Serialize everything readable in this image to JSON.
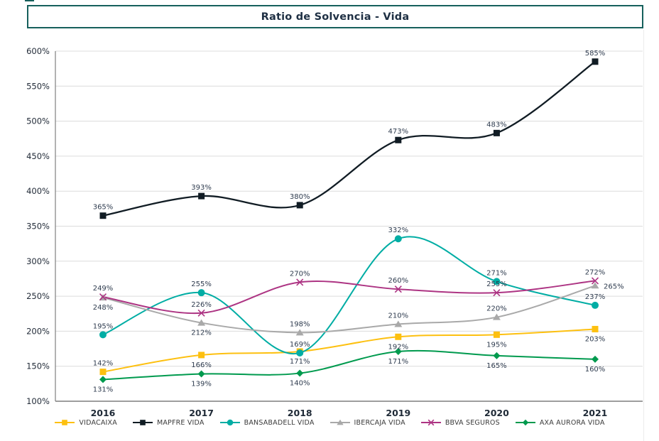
{
  "page": {
    "title": "Ratio de Solvencia - Vida"
  },
  "chart_data": {
    "type": "line",
    "title": "Ratio de Solvencia - Vida",
    "categories": [
      "2016",
      "2017",
      "2018",
      "2019",
      "2020",
      "2021"
    ],
    "y_axis": {
      "min": 100,
      "max": 600,
      "step": 50,
      "suffix": "%"
    },
    "ylim": [
      100,
      600
    ],
    "grid": true,
    "legend_position": "bottom",
    "label_suffix": "%",
    "series": [
      {
        "name": "VIDACAIXA",
        "color": "#FDC010",
        "marker": "square",
        "values": [
          142,
          166,
          171,
          192,
          195,
          203
        ],
        "labels": [
          "142%",
          "166%",
          "171%",
          "192%",
          "195%",
          "203%"
        ],
        "label_pos": [
          "above",
          "below",
          "below",
          "below",
          "below",
          "below"
        ]
      },
      {
        "name": "MAPFRE VIDA",
        "color": "#111C24",
        "marker": "square",
        "values": [
          365,
          393,
          380,
          473,
          483,
          585
        ],
        "labels": [
          "365%",
          "393%",
          "380%",
          "473%",
          "483%",
          "585%"
        ],
        "label_pos": [
          "above",
          "above",
          "above",
          "above",
          "above",
          "above"
        ]
      },
      {
        "name": "BANSABADELL VIDA",
        "color": "#00ADA4",
        "marker": "circle",
        "values": [
          195,
          255,
          169,
          332,
          271,
          237
        ],
        "labels": [
          "195%",
          "255%",
          "169%",
          "332%",
          "271%",
          "237%"
        ],
        "label_pos": [
          "above",
          "above",
          "above",
          "above",
          "above",
          "above"
        ]
      },
      {
        "name": "IBERCAJA VIDA",
        "color": "#A9A9A9",
        "marker": "triangle",
        "values": [
          248,
          212,
          198,
          210,
          220,
          265
        ],
        "labels": [
          "248%",
          "212%",
          "198%",
          "210%",
          "220%",
          "265%"
        ],
        "label_pos": [
          "below",
          "below",
          "above",
          "above",
          "above",
          "right"
        ]
      },
      {
        "name": "BBVA SEGUROS",
        "color": "#AD3483",
        "marker": "x",
        "values": [
          249,
          226,
          270,
          260,
          255,
          272
        ],
        "labels": [
          "249%",
          "226%",
          "270%",
          "260%",
          "255%",
          "272%"
        ],
        "label_pos": [
          "above",
          "above",
          "above",
          "above",
          "above",
          "above"
        ]
      },
      {
        "name": "AXA AURORA VIDA",
        "color": "#009A4E",
        "marker": "diamond",
        "values": [
          131,
          139,
          140,
          171,
          165,
          160
        ],
        "labels": [
          "131%",
          "139%",
          "140%",
          "171%",
          "165%",
          "160%"
        ],
        "label_pos": [
          "below",
          "below",
          "below",
          "below",
          "below",
          "below"
        ]
      }
    ]
  }
}
